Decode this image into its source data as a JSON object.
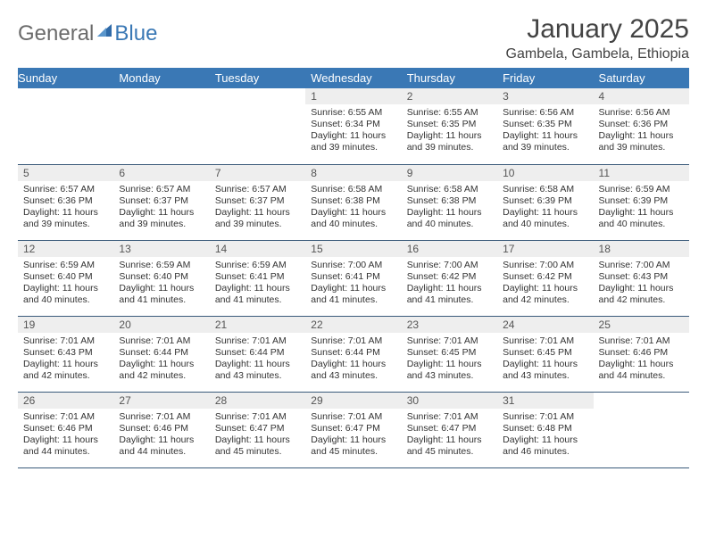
{
  "logo": {
    "text1": "General",
    "text2": "Blue"
  },
  "title": "January 2025",
  "location": "Gambela, Gambela, Ethiopia",
  "colors": {
    "header_bg": "#3a78b5",
    "header_fg": "#ffffff",
    "daynum_bg": "#eeeeee",
    "row_border": "#3a5a7a",
    "text": "#333333",
    "title_color": "#434343"
  },
  "weekdays": [
    "Sunday",
    "Monday",
    "Tuesday",
    "Wednesday",
    "Thursday",
    "Friday",
    "Saturday"
  ],
  "weeks": [
    [
      {
        "empty": true
      },
      {
        "empty": true
      },
      {
        "empty": true
      },
      {
        "n": "1",
        "sunrise": "6:55 AM",
        "sunset": "6:34 PM",
        "dl": "11 hours and 39 minutes."
      },
      {
        "n": "2",
        "sunrise": "6:55 AM",
        "sunset": "6:35 PM",
        "dl": "11 hours and 39 minutes."
      },
      {
        "n": "3",
        "sunrise": "6:56 AM",
        "sunset": "6:35 PM",
        "dl": "11 hours and 39 minutes."
      },
      {
        "n": "4",
        "sunrise": "6:56 AM",
        "sunset": "6:36 PM",
        "dl": "11 hours and 39 minutes."
      }
    ],
    [
      {
        "n": "5",
        "sunrise": "6:57 AM",
        "sunset": "6:36 PM",
        "dl": "11 hours and 39 minutes."
      },
      {
        "n": "6",
        "sunrise": "6:57 AM",
        "sunset": "6:37 PM",
        "dl": "11 hours and 39 minutes."
      },
      {
        "n": "7",
        "sunrise": "6:57 AM",
        "sunset": "6:37 PM",
        "dl": "11 hours and 39 minutes."
      },
      {
        "n": "8",
        "sunrise": "6:58 AM",
        "sunset": "6:38 PM",
        "dl": "11 hours and 40 minutes."
      },
      {
        "n": "9",
        "sunrise": "6:58 AM",
        "sunset": "6:38 PM",
        "dl": "11 hours and 40 minutes."
      },
      {
        "n": "10",
        "sunrise": "6:58 AM",
        "sunset": "6:39 PM",
        "dl": "11 hours and 40 minutes."
      },
      {
        "n": "11",
        "sunrise": "6:59 AM",
        "sunset": "6:39 PM",
        "dl": "11 hours and 40 minutes."
      }
    ],
    [
      {
        "n": "12",
        "sunrise": "6:59 AM",
        "sunset": "6:40 PM",
        "dl": "11 hours and 40 minutes."
      },
      {
        "n": "13",
        "sunrise": "6:59 AM",
        "sunset": "6:40 PM",
        "dl": "11 hours and 41 minutes."
      },
      {
        "n": "14",
        "sunrise": "6:59 AM",
        "sunset": "6:41 PM",
        "dl": "11 hours and 41 minutes."
      },
      {
        "n": "15",
        "sunrise": "7:00 AM",
        "sunset": "6:41 PM",
        "dl": "11 hours and 41 minutes."
      },
      {
        "n": "16",
        "sunrise": "7:00 AM",
        "sunset": "6:42 PM",
        "dl": "11 hours and 41 minutes."
      },
      {
        "n": "17",
        "sunrise": "7:00 AM",
        "sunset": "6:42 PM",
        "dl": "11 hours and 42 minutes."
      },
      {
        "n": "18",
        "sunrise": "7:00 AM",
        "sunset": "6:43 PM",
        "dl": "11 hours and 42 minutes."
      }
    ],
    [
      {
        "n": "19",
        "sunrise": "7:01 AM",
        "sunset": "6:43 PM",
        "dl": "11 hours and 42 minutes."
      },
      {
        "n": "20",
        "sunrise": "7:01 AM",
        "sunset": "6:44 PM",
        "dl": "11 hours and 42 minutes."
      },
      {
        "n": "21",
        "sunrise": "7:01 AM",
        "sunset": "6:44 PM",
        "dl": "11 hours and 43 minutes."
      },
      {
        "n": "22",
        "sunrise": "7:01 AM",
        "sunset": "6:44 PM",
        "dl": "11 hours and 43 minutes."
      },
      {
        "n": "23",
        "sunrise": "7:01 AM",
        "sunset": "6:45 PM",
        "dl": "11 hours and 43 minutes."
      },
      {
        "n": "24",
        "sunrise": "7:01 AM",
        "sunset": "6:45 PM",
        "dl": "11 hours and 43 minutes."
      },
      {
        "n": "25",
        "sunrise": "7:01 AM",
        "sunset": "6:46 PM",
        "dl": "11 hours and 44 minutes."
      }
    ],
    [
      {
        "n": "26",
        "sunrise": "7:01 AM",
        "sunset": "6:46 PM",
        "dl": "11 hours and 44 minutes."
      },
      {
        "n": "27",
        "sunrise": "7:01 AM",
        "sunset": "6:46 PM",
        "dl": "11 hours and 44 minutes."
      },
      {
        "n": "28",
        "sunrise": "7:01 AM",
        "sunset": "6:47 PM",
        "dl": "11 hours and 45 minutes."
      },
      {
        "n": "29",
        "sunrise": "7:01 AM",
        "sunset": "6:47 PM",
        "dl": "11 hours and 45 minutes."
      },
      {
        "n": "30",
        "sunrise": "7:01 AM",
        "sunset": "6:47 PM",
        "dl": "11 hours and 45 minutes."
      },
      {
        "n": "31",
        "sunrise": "7:01 AM",
        "sunset": "6:48 PM",
        "dl": "11 hours and 46 minutes."
      },
      {
        "empty": true
      }
    ]
  ]
}
